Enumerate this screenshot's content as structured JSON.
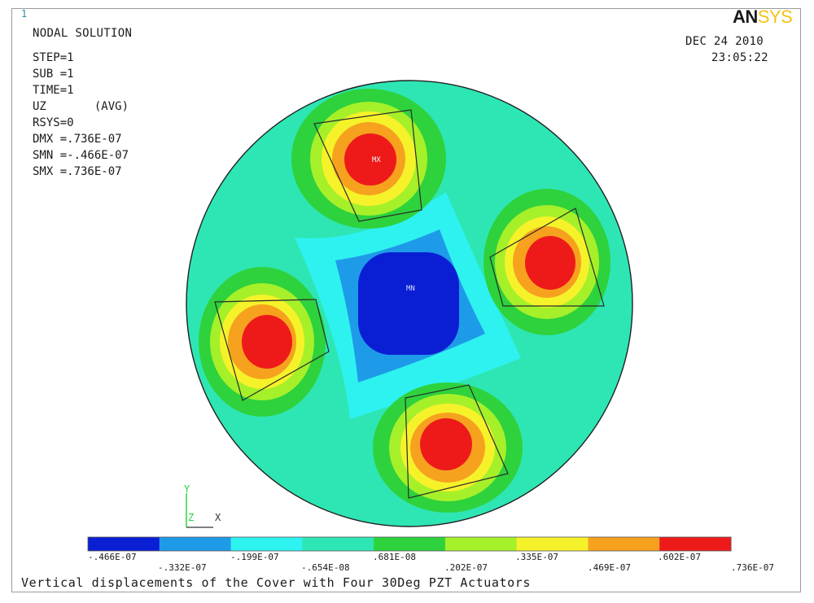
{
  "header": {
    "window_number": "1",
    "solution_title": "NODAL SOLUTION",
    "stats": [
      "STEP=1",
      "SUB =1",
      "TIME=1",
      "UZ       (AVG)",
      "RSYS=0",
      "DMX =.736E-07",
      "SMN =-.466E-07",
      "SMX =.736E-07"
    ],
    "date": "DEC 24 2010",
    "time": "23:05:22"
  },
  "logo": {
    "left": "AN",
    "right": "SYS"
  },
  "markers": {
    "max": "MX",
    "min": "MN"
  },
  "triad": {
    "y": "Y",
    "z": "Z",
    "x": "X"
  },
  "legend": {
    "colors": [
      "#0a1fd4",
      "#1e9be8",
      "#2ef2f0",
      "#2ee6b4",
      "#2ed23c",
      "#a6f02a",
      "#f6f22a",
      "#f6a21e",
      "#ee1a1a"
    ],
    "top_labels": [
      "-.466E-07",
      "-.199E-07",
      ".681E-08",
      ".335E-07",
      ".602E-07"
    ],
    "bottom_labels": [
      "-.332E-07",
      "-.654E-08",
      ".202E-07",
      ".469E-07",
      ".736E-07"
    ]
  },
  "caption": "Vertical displacements of the Cover with Four 30Deg PZT Actuators",
  "colors": {
    "background": "#2ee6b4",
    "max": "#ee1a1a",
    "min": "#0a1fd4"
  }
}
